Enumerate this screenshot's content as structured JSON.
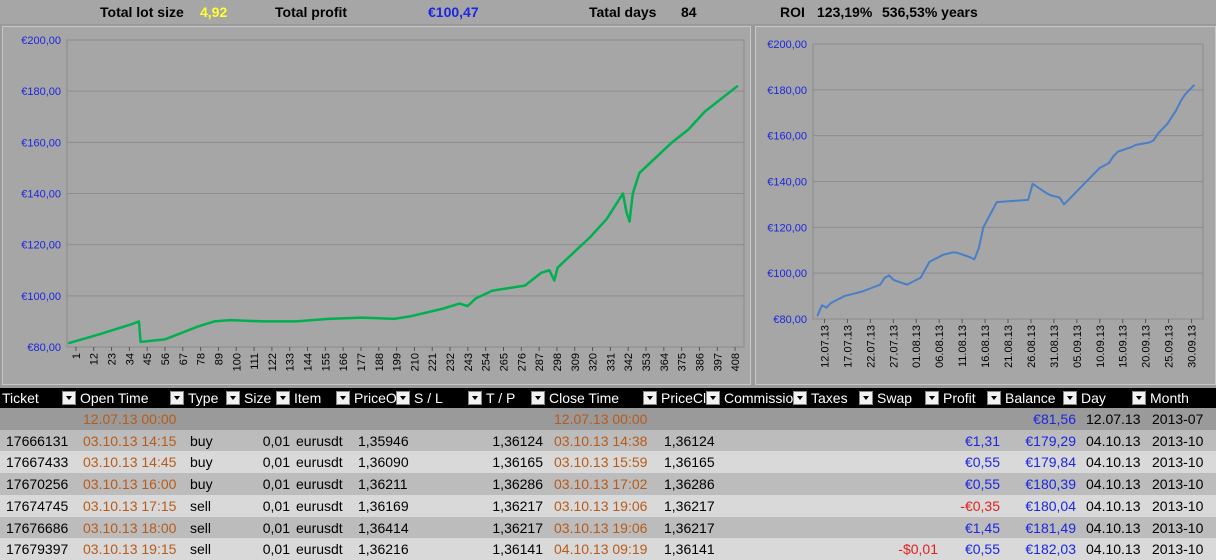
{
  "summary": {
    "lot_label": "Total lot size",
    "lot_value": "4,92",
    "profit_label": "Total profit",
    "profit_value": "€100,47",
    "days_label": "Tatal days",
    "days_value": "84",
    "roi_label": "ROI",
    "roi_value": "123,19%",
    "roi_years": "536,53% years",
    "colors": {
      "lot": "#ffff33",
      "profit": "#1b26e0",
      "label": "#000000"
    }
  },
  "chart_data": [
    {
      "type": "line",
      "title": "",
      "color": "#00b050",
      "ylim": [
        80,
        200
      ],
      "y_ticks": [
        "€80,00",
        "€100,00",
        "€120,00",
        "€140,00",
        "€160,00",
        "€180,00",
        "€200,00"
      ],
      "x_ticks": [
        "1",
        "12",
        "23",
        "34",
        "45",
        "56",
        "67",
        "78",
        "89",
        "100",
        "111",
        "122",
        "133",
        "144",
        "155",
        "166",
        "177",
        "188",
        "199",
        "210",
        "221",
        "232",
        "243",
        "254",
        "265",
        "276",
        "287",
        "298",
        "309",
        "320",
        "331",
        "342",
        "353",
        "364",
        "375",
        "386",
        "397",
        "408"
      ],
      "x": [
        1,
        20,
        40,
        44,
        45,
        60,
        80,
        90,
        100,
        120,
        140,
        160,
        180,
        200,
        210,
        230,
        240,
        245,
        250,
        260,
        270,
        280,
        290,
        295,
        298,
        300,
        310,
        320,
        330,
        340,
        342,
        344,
        346,
        350,
        360,
        370,
        380,
        390,
        400,
        410
      ],
      "y": [
        81.5,
        85,
        89,
        90,
        82,
        83,
        88,
        90,
        90.5,
        90,
        90,
        91,
        91.5,
        91,
        92,
        95,
        97,
        96,
        99,
        102,
        103,
        104,
        109,
        110,
        106,
        111,
        117,
        123,
        130,
        140,
        133,
        129,
        140,
        148,
        154,
        160,
        165,
        172,
        177,
        182
      ]
    },
    {
      "type": "line",
      "title": "",
      "color": "#4a7ec8",
      "ylim": [
        80,
        200
      ],
      "y_ticks": [
        "€80,00",
        "€100,00",
        "€120,00",
        "€140,00",
        "€160,00",
        "€180,00",
        "€200,00"
      ],
      "x_ticks": [
        "12.07.13",
        "17.07.13",
        "22.07.13",
        "27.07.13",
        "01.08.13",
        "06.08.13",
        "11.08.13",
        "16.08.13",
        "21.08.13",
        "26.08.13",
        "31.08.13",
        "05.09.13",
        "10.09.13",
        "15.09.13",
        "20.09.13",
        "25.09.13",
        "30.09.13"
      ],
      "x": [
        0,
        1,
        2,
        3,
        5,
        6,
        8,
        10,
        14,
        15,
        16,
        17,
        20,
        23,
        25,
        28,
        30,
        31,
        34,
        35,
        36,
        37,
        40,
        47,
        48,
        51,
        52,
        54,
        55,
        62,
        63,
        64,
        65,
        66,
        67,
        70,
        71,
        74,
        75,
        76,
        77,
        78,
        79,
        80,
        81,
        82,
        83,
        84
      ],
      "y": [
        81.5,
        86,
        85,
        87,
        89,
        90,
        91,
        92,
        95,
        98,
        99,
        97,
        95,
        98,
        105,
        108,
        109,
        109,
        107,
        106,
        111,
        120,
        131,
        132,
        139,
        135,
        134,
        133,
        130,
        144,
        146,
        147,
        148,
        151,
        153,
        155,
        156,
        157,
        158,
        161,
        163,
        165,
        168,
        171,
        175,
        178,
        180,
        182
      ]
    }
  ],
  "table": {
    "headers": [
      "Ticket",
      "Open Time",
      "Type",
      "Size",
      "Item",
      "PriceO",
      "S / L",
      "T / P",
      "Close Time",
      "PriceCl",
      "Commissio",
      "Taxes",
      "Swap",
      "Profit",
      "Balance",
      "Day",
      "Month"
    ],
    "rows": [
      {
        "ticket": "",
        "open_time": "12.07.13 00:00",
        "type": "",
        "size": "",
        "item": "",
        "price_open": "",
        "sl": "",
        "tp": "",
        "close_time": "12.07.13 00:00",
        "price_close": "",
        "commission": "",
        "taxes": "",
        "swap": "",
        "profit": "",
        "balance": "€81,56",
        "day": "12.07.13",
        "month": "2013-07",
        "profit_color": "#1b26e0",
        "bg": "#9a9a9a"
      },
      {
        "ticket": "17666131",
        "open_time": "03.10.13 14:15",
        "type": "buy",
        "size": "0,01",
        "item": "eurusdt",
        "price_open": "1,35946",
        "sl": "",
        "tp": "1,36124",
        "close_time": "03.10.13 14:38",
        "price_close": "1,36124",
        "commission": "",
        "taxes": "",
        "swap": "",
        "profit": "€1,31",
        "balance": "€179,29",
        "day": "04.10.13",
        "month": "2013-10",
        "profit_color": "#1b26e0",
        "bg": "#bcbcbc"
      },
      {
        "ticket": "17667433",
        "open_time": "03.10.13 14:45",
        "type": "buy",
        "size": "0,01",
        "item": "eurusdt",
        "price_open": "1,36090",
        "sl": "",
        "tp": "1,36165",
        "close_time": "03.10.13 15:59",
        "price_close": "1,36165",
        "commission": "",
        "taxes": "",
        "swap": "",
        "profit": "€0,55",
        "balance": "€179,84",
        "day": "04.10.13",
        "month": "2013-10",
        "profit_color": "#1b26e0",
        "bg": "#d9d9d9"
      },
      {
        "ticket": "17670256",
        "open_time": "03.10.13 16:00",
        "type": "buy",
        "size": "0,01",
        "item": "eurusdt",
        "price_open": "1,36211",
        "sl": "",
        "tp": "1,36286",
        "close_time": "03.10.13 17:02",
        "price_close": "1,36286",
        "commission": "",
        "taxes": "",
        "swap": "",
        "profit": "€0,55",
        "balance": "€180,39",
        "day": "04.10.13",
        "month": "2013-10",
        "profit_color": "#1b26e0",
        "bg": "#bcbcbc"
      },
      {
        "ticket": "17674745",
        "open_time": "03.10.13 17:15",
        "type": "sell",
        "size": "0,01",
        "item": "eurusdt",
        "price_open": "1,36169",
        "sl": "",
        "tp": "1,36217",
        "close_time": "03.10.13 19:06",
        "price_close": "1,36217",
        "commission": "",
        "taxes": "",
        "swap": "",
        "profit": "-€0,35",
        "balance": "€180,04",
        "day": "04.10.13",
        "month": "2013-10",
        "profit_color": "#e02020",
        "bg": "#d9d9d9"
      },
      {
        "ticket": "17676686",
        "open_time": "03.10.13 18:00",
        "type": "sell",
        "size": "0,01",
        "item": "eurusdt",
        "price_open": "1,36414",
        "sl": "",
        "tp": "1,36217",
        "close_time": "03.10.13 19:06",
        "price_close": "1,36217",
        "commission": "",
        "taxes": "",
        "swap": "",
        "profit": "€1,45",
        "balance": "€181,49",
        "day": "04.10.13",
        "month": "2013-10",
        "profit_color": "#1b26e0",
        "bg": "#bcbcbc"
      },
      {
        "ticket": "17679397",
        "open_time": "03.10.13 19:15",
        "type": "sell",
        "size": "0,01",
        "item": "eurusdt",
        "price_open": "1,36216",
        "sl": "",
        "tp": "1,36141",
        "close_time": "04.10.13 09:19",
        "price_close": "1,36141",
        "commission": "",
        "taxes": "",
        "swap": "-$0,01",
        "profit": "€0,55",
        "balance": "€182,03",
        "day": "04.10.13",
        "month": "2013-10",
        "profit_color": "#1b26e0",
        "bg": "#d9d9d9"
      }
    ]
  }
}
